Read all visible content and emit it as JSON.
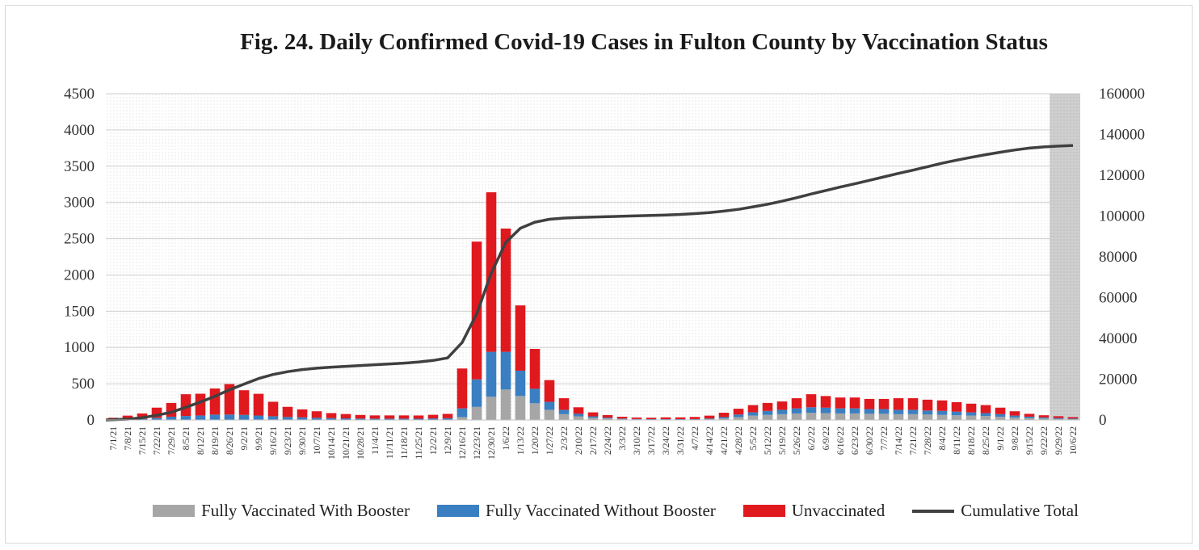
{
  "chart_data": {
    "type": "bar",
    "title": "Fig. 24. Daily Confirmed Covid-19 Cases in Fulton County by Vaccination Status",
    "stacked": true,
    "y_left": {
      "ticks": [
        "0",
        "500",
        "1000",
        "1500",
        "2000",
        "2500",
        "3000",
        "3500",
        "4000",
        "4500"
      ],
      "range": [
        0,
        4500
      ]
    },
    "y_right": {
      "ticks": [
        "0",
        "20000",
        "40000",
        "60000",
        "80000",
        "100000",
        "120000",
        "140000",
        "160000"
      ],
      "range": [
        0,
        160000
      ]
    },
    "x_tick_labels": [
      "7/1/21",
      "7/8/21",
      "7/15/21",
      "7/22/21",
      "7/29/21",
      "8/5/21",
      "8/12/21",
      "8/19/21",
      "8/26/21",
      "9/2/21",
      "9/9/21",
      "9/16/21",
      "9/23/21",
      "9/30/21",
      "10/7/21",
      "10/14/21",
      "10/21/21",
      "10/28/21",
      "11/4/21",
      "11/11/21",
      "11/18/21",
      "11/25/21",
      "12/2/21",
      "12/9/21",
      "12/16/21",
      "12/23/21",
      "12/30/21",
      "1/6/22",
      "1/13/22",
      "1/20/22",
      "1/27/22",
      "2/3/22",
      "2/10/22",
      "2/17/22",
      "2/24/22",
      "3/3/22",
      "3/10/22",
      "3/17/22",
      "3/24/22",
      "3/31/22",
      "4/7/22",
      "4/14/22",
      "4/21/22",
      "4/28/22",
      "5/5/22",
      "5/12/22",
      "5/19/22",
      "5/26/22",
      "6/2/22",
      "6/9/22",
      "6/16/22",
      "6/23/22",
      "6/30/22",
      "7/7/22",
      "7/14/22",
      "7/21/22",
      "7/28/22",
      "8/4/22",
      "8/11/22",
      "8/18/22",
      "8/25/22",
      "9/1/22",
      "9/8/22",
      "9/15/22",
      "9/22/22",
      "9/29/22",
      "10/6/22"
    ],
    "series": [
      {
        "name": "Fully Vaccinated With Booster",
        "color": "#a6a6a6",
        "type": "bar",
        "values": [
          0,
          0,
          0,
          0,
          0,
          0,
          2,
          4,
          5,
          5,
          6,
          6,
          6,
          6,
          5,
          5,
          4,
          4,
          3,
          3,
          3,
          2,
          3,
          4,
          40,
          180,
          320,
          420,
          330,
          230,
          140,
          80,
          50,
          30,
          20,
          12,
          8,
          6,
          6,
          6,
          6,
          10,
          20,
          40,
          60,
          70,
          80,
          90,
          100,
          95,
          90,
          90,
          85,
          85,
          80,
          80,
          75,
          70,
          65,
          60,
          55,
          45,
          35,
          25,
          20,
          15,
          10
        ]
      },
      {
        "name": "Fully Vaccinated Without Booster",
        "color": "#3a7fc1",
        "type": "bar",
        "values": [
          5,
          10,
          15,
          30,
          45,
          55,
          60,
          70,
          70,
          65,
          55,
          45,
          35,
          30,
          25,
          20,
          18,
          15,
          15,
          15,
          15,
          15,
          18,
          20,
          120,
          380,
          620,
          520,
          350,
          200,
          110,
          60,
          35,
          20,
          12,
          8,
          6,
          5,
          5,
          5,
          6,
          10,
          20,
          35,
          45,
          55,
          60,
          70,
          75,
          75,
          70,
          70,
          65,
          65,
          60,
          60,
          55,
          55,
          50,
          45,
          40,
          35,
          25,
          20,
          15,
          12,
          10
        ]
      },
      {
        "name": "Unvaccinated",
        "color": "#e0191f",
        "type": "bar",
        "values": [
          25,
          50,
          75,
          140,
          190,
          300,
          300,
          360,
          420,
          340,
          300,
          200,
          140,
          110,
          90,
          70,
          60,
          50,
          45,
          45,
          45,
          45,
          50,
          60,
          550,
          1900,
          2200,
          1700,
          900,
          550,
          300,
          160,
          90,
          55,
          35,
          25,
          20,
          20,
          25,
          25,
          30,
          40,
          60,
          80,
          100,
          110,
          115,
          140,
          180,
          160,
          150,
          150,
          140,
          140,
          160,
          160,
          150,
          145,
          130,
          120,
          110,
          90,
          60,
          40,
          30,
          25,
          20
        ]
      },
      {
        "name": "Cumulative Total",
        "color": "#404040",
        "type": "line",
        "axis": "right",
        "values": [
          0,
          400,
          1100,
          2300,
          3800,
          6200,
          8800,
          11600,
          14800,
          17600,
          20300,
          22300,
          23700,
          24700,
          25400,
          25900,
          26300,
          26700,
          27100,
          27500,
          27900,
          28400,
          29200,
          30400,
          38000,
          52000,
          72000,
          87000,
          94000,
          97000,
          98400,
          99000,
          99300,
          99500,
          99700,
          99900,
          100100,
          100300,
          100500,
          100800,
          101200,
          101700,
          102400,
          103300,
          104500,
          105800,
          107300,
          109000,
          110800,
          112500,
          114200,
          115800,
          117500,
          119200,
          120900,
          122500,
          124200,
          125900,
          127400,
          128800,
          130100,
          131300,
          132400,
          133300,
          133900,
          134300,
          134600
        ]
      }
    ]
  },
  "legend": {
    "booster": "Fully Vaccinated With Booster",
    "without_booster": "Fully Vaccinated Without Booster",
    "unvaccinated": "Unvaccinated",
    "cumulative": "Cumulative Total"
  }
}
